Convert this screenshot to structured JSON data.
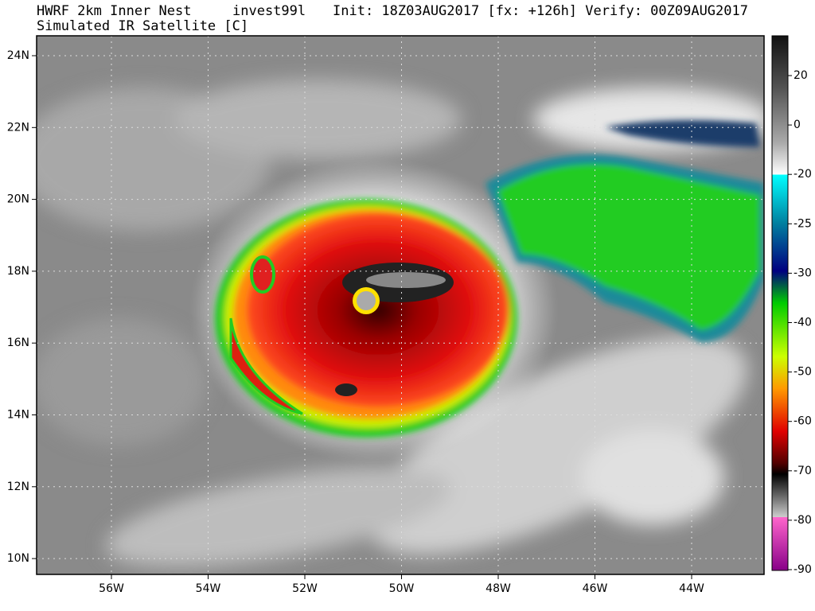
{
  "header": {
    "title": "HWRF 2km Inner Nest",
    "storm": "invest99l",
    "times": "Init: 18Z03AUG2017 [fx: +126h] Verify: 00Z09AUG2017",
    "subtitle": "Simulated IR Satellite [C]"
  },
  "map": {
    "lat_labels": [
      "24N",
      "22N",
      "20N",
      "18N",
      "16N",
      "14N",
      "12N",
      "10N"
    ],
    "lon_labels": [
      "56W",
      "54W",
      "52W",
      "50W",
      "48W",
      "46W",
      "44W"
    ]
  },
  "colorbar": {
    "ticks": [
      20,
      0,
      -20,
      -25,
      -30,
      -40,
      -50,
      -60,
      -70,
      -80,
      -90
    ]
  }
}
